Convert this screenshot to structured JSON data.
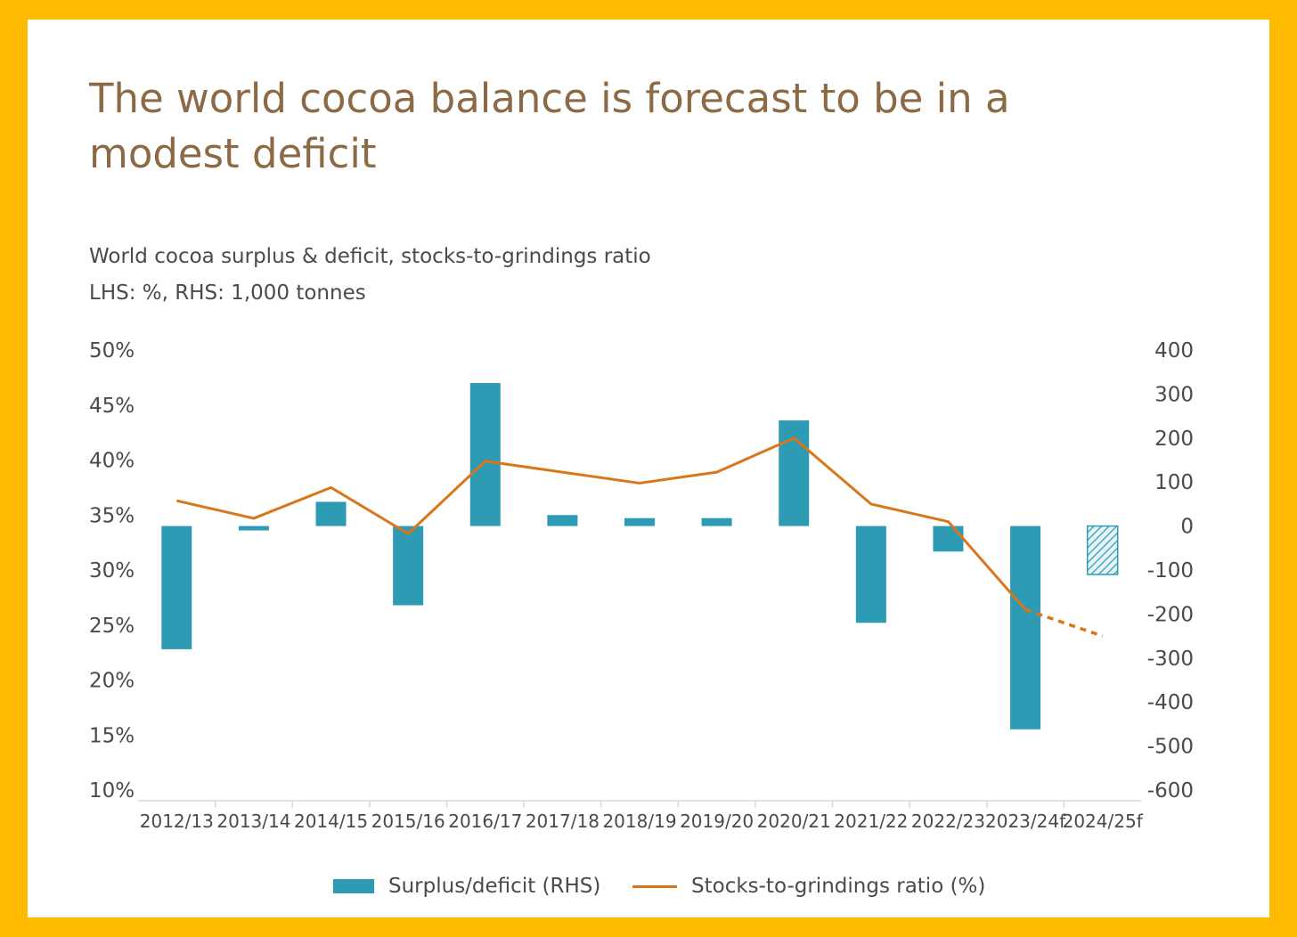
{
  "title": "The world cocoa balance is forecast to be in a modest deficit",
  "subtitle_line1": "World cocoa surplus & deficit, stocks-to-grindings ratio",
  "subtitle_line2": "LHS: %, RHS: 1,000 tonnes",
  "colors": {
    "background_frame": "#ffbb00",
    "bar": "#2e9bb5",
    "line": "#d9761a",
    "title": "#8b6a45"
  },
  "chart_data": {
    "type": "bar+line",
    "categories": [
      "2012/13",
      "2013/14",
      "2014/15",
      "2015/16",
      "2016/17",
      "2017/18",
      "2018/19",
      "2019/20",
      "2020/21",
      "2021/22",
      "2022/23",
      "2023/24f",
      "2024/25f"
    ],
    "series": [
      {
        "name": "Surplus/deficit (RHS)",
        "type": "bar",
        "axis": "right",
        "values": [
          -280,
          -10,
          55,
          -180,
          325,
          25,
          18,
          18,
          240,
          -220,
          -58,
          -462,
          -110
        ],
        "forecast_hatched": [
          false,
          false,
          false,
          false,
          false,
          false,
          false,
          false,
          false,
          false,
          false,
          false,
          true
        ]
      },
      {
        "name": "Stocks-to-grindings ratio (%)",
        "type": "line",
        "axis": "left",
        "values": [
          36.3,
          34.7,
          37.5,
          33.3,
          39.9,
          38.9,
          37.9,
          38.9,
          42.0,
          36.0,
          34.4,
          26.4,
          24.0
        ],
        "dashed_from_index": 11
      }
    ],
    "left_axis": {
      "ylim": [
        10,
        50
      ],
      "ticks": [
        "50%",
        "45%",
        "40%",
        "35%",
        "30%",
        "25%",
        "20%",
        "15%",
        "10%"
      ]
    },
    "right_axis": {
      "ylim": [
        -600,
        400
      ],
      "ticks": [
        "400",
        "300",
        "200",
        "100",
        "0",
        "-100",
        "-200",
        "-300",
        "-400",
        "-500",
        "-600"
      ]
    },
    "grid": false,
    "legend_position": "bottom"
  },
  "legend": {
    "bar_label": "Surplus/deficit (RHS)",
    "line_label": "Stocks-to-grindings ratio (%)"
  }
}
